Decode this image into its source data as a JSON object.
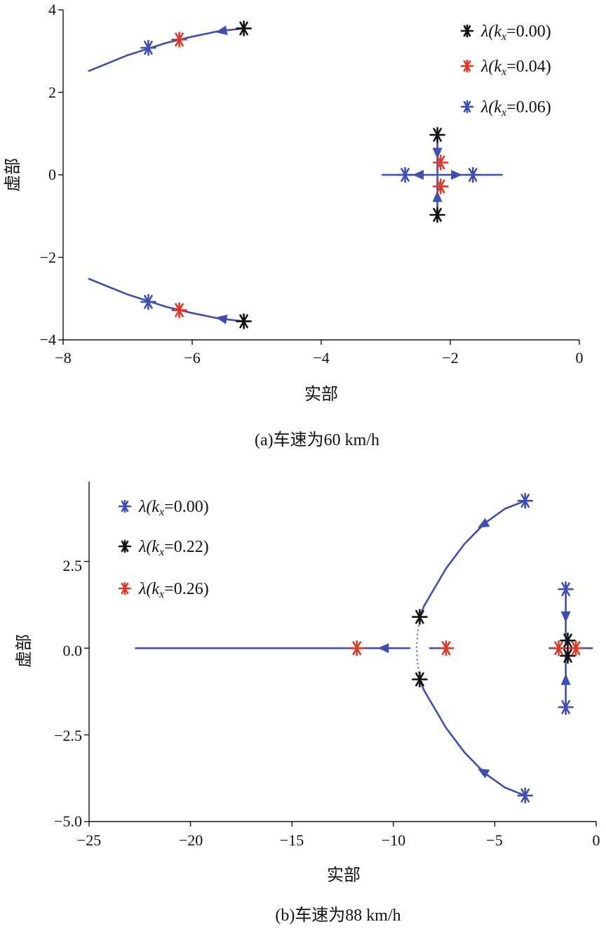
{
  "chart_data": [
    {
      "type": "scatter",
      "caption": "(a)车速为60 km/h",
      "xlabel": "实部",
      "ylabel": "虚部",
      "xlim": [
        -8,
        0
      ],
      "ylim": [
        -4,
        4
      ],
      "xticks": [
        -8,
        -6,
        -4,
        -2,
        0
      ],
      "yticks": [
        -4,
        -2,
        0,
        2,
        4
      ],
      "xtick_labels": [
        "−8",
        "−6",
        "−4",
        "−2",
        "0"
      ],
      "ytick_labels": [
        "−4",
        "−2",
        "0",
        "2",
        "4"
      ],
      "grid": false,
      "legend_position": "top-right",
      "colors": {
        "line": "#3f4fb0",
        "black": "#111111",
        "red": "#d83a2a",
        "blue": "#3f4fb0"
      },
      "series": [
        {
          "name": "λ(kx=0.00)",
          "label_pre": "λ(",
          "label_k": "k",
          "label_sub": "x",
          "label_post": "=0.00)",
          "color": "#111111",
          "points": [
            [
              -5.2,
              3.55
            ],
            [
              -5.2,
              -3.55
            ],
            [
              -2.2,
              0.97
            ],
            [
              -2.2,
              -0.97
            ]
          ]
        },
        {
          "name": "λ(kx=0.04)",
          "label_pre": "λ(",
          "label_k": "k",
          "label_sub": "x",
          "label_post": "=0.04)",
          "color": "#d83a2a",
          "points": [
            [
              -6.2,
              3.28
            ],
            [
              -6.2,
              -3.28
            ],
            [
              -2.15,
              0.3
            ],
            [
              -2.15,
              -0.28
            ]
          ]
        },
        {
          "name": "λ(kx=0.06)",
          "label_pre": "λ(",
          "label_k": "k",
          "label_sub": "x",
          "label_post": "=0.06)",
          "color": "#3f4fb0",
          "points": [
            [
              -6.68,
              3.08
            ],
            [
              -6.68,
              -3.08
            ],
            [
              -2.7,
              0.0
            ],
            [
              -1.65,
              0.0
            ]
          ]
        }
      ],
      "loci": [
        [
          [
            -5.2,
            3.55
          ],
          [
            -5.6,
            3.48
          ],
          [
            -6.0,
            3.35
          ],
          [
            -6.4,
            3.2
          ],
          [
            -7.0,
            2.9
          ],
          [
            -7.6,
            2.52
          ]
        ],
        [
          [
            -5.2,
            -3.55
          ],
          [
            -5.6,
            -3.48
          ],
          [
            -6.0,
            -3.35
          ],
          [
            -6.4,
            -3.2
          ],
          [
            -7.0,
            -2.9
          ],
          [
            -7.6,
            -2.52
          ]
        ],
        [
          [
            -3.05,
            0.0
          ],
          [
            -1.2,
            0.0
          ]
        ],
        [
          [
            -2.2,
            0.97
          ],
          [
            -2.2,
            0.04
          ]
        ],
        [
          [
            -2.2,
            -0.97
          ],
          [
            -2.2,
            -0.04
          ]
        ]
      ],
      "arrows": [
        {
          "at": [
            -5.55,
            3.48
          ],
          "dir": [
            -1,
            -0.18
          ]
        },
        {
          "at": [
            -5.55,
            -3.48
          ],
          "dir": [
            -1,
            0.18
          ]
        },
        {
          "at": [
            -2.2,
            0.52
          ],
          "dir": [
            0,
            -1
          ]
        },
        {
          "at": [
            -2.2,
            -0.52
          ],
          "dir": [
            0,
            1
          ]
        },
        {
          "at": [
            -2.5,
            0.0
          ],
          "dir": [
            -1,
            0
          ]
        },
        {
          "at": [
            -1.9,
            0.0
          ],
          "dir": [
            1,
            0
          ]
        }
      ]
    },
    {
      "type": "scatter",
      "caption": "(b)车速为88 km/h",
      "xlabel": "实部",
      "ylabel": "虚部",
      "xlim": [
        -25,
        0
      ],
      "ylim": [
        -5.0,
        4.8
      ],
      "xticks": [
        -25,
        -20,
        -15,
        -10,
        -5,
        0
      ],
      "yticks": [
        -5.0,
        -2.5,
        0.0,
        2.5
      ],
      "xtick_labels": [
        "−25",
        "−20",
        "−15",
        "−10",
        "−5",
        "0"
      ],
      "ytick_labels": [
        "−5.0",
        "−2.5",
        "0.0",
        "2.5"
      ],
      "grid": false,
      "legend_position": "top-left",
      "colors": {
        "line": "#3f4fb0",
        "black": "#111111",
        "red": "#d83a2a",
        "blue": "#3f4fb0"
      },
      "series": [
        {
          "name": "λ(kx=0.00)",
          "label_pre": "λ(",
          "label_k": "k",
          "label_sub": "x",
          "label_post": "=0.00)",
          "color": "#3f4fb0",
          "points": [
            [
              -3.5,
              4.25
            ],
            [
              -3.5,
              -4.25
            ],
            [
              -1.5,
              1.7
            ],
            [
              -1.5,
              -1.7
            ]
          ]
        },
        {
          "name": "λ(kx=0.22)",
          "label_pre": "λ(",
          "label_k": "k",
          "label_sub": "x",
          "label_post": "=0.22)",
          "color": "#111111",
          "points": [
            [
              -8.7,
              0.9
            ],
            [
              -8.7,
              -0.9
            ],
            [
              -1.4,
              0.22
            ],
            [
              -1.4,
              -0.22
            ]
          ]
        },
        {
          "name": "λ(kx=0.26)",
          "label_pre": "λ(",
          "label_k": "k",
          "label_sub": "x",
          "label_post": "=0.26)",
          "color": "#d83a2a",
          "points": [
            [
              -11.8,
              0.0
            ],
            [
              -7.4,
              0.0
            ],
            [
              -1.85,
              0.0
            ],
            [
              -1.0,
              0.0
            ]
          ]
        }
      ],
      "loci": [
        [
          [
            -3.5,
            4.25
          ],
          [
            -4.5,
            4.02
          ],
          [
            -5.5,
            3.6
          ],
          [
            -6.5,
            3.0
          ],
          [
            -7.4,
            2.3
          ],
          [
            -8.1,
            1.6
          ],
          [
            -8.5,
            1.2
          ],
          [
            -8.7,
            0.9
          ]
        ],
        [
          [
            -3.5,
            -4.25
          ],
          [
            -4.5,
            -4.02
          ],
          [
            -5.5,
            -3.6
          ],
          [
            -6.5,
            -3.0
          ],
          [
            -7.4,
            -2.3
          ],
          [
            -8.1,
            -1.6
          ],
          [
            -8.5,
            -1.2
          ],
          [
            -8.7,
            -0.9
          ]
        ],
        [
          [
            -22.7,
            0.0
          ],
          [
            -9.2,
            0.0
          ]
        ],
        [
          [
            -8.2,
            0.0
          ],
          [
            -7.4,
            0.0
          ]
        ],
        [
          [
            -2.3,
            0.0
          ],
          [
            -0.2,
            0.0
          ]
        ],
        [
          [
            -1.5,
            1.7
          ],
          [
            -1.5,
            0.1
          ]
        ],
        [
          [
            -1.5,
            -1.7
          ],
          [
            -1.5,
            -0.1
          ]
        ]
      ],
      "dotted": [
        [
          [
            -8.7,
            0.9
          ],
          [
            -8.8,
            0.45
          ],
          [
            -8.85,
            0.0
          ],
          [
            -8.8,
            -0.45
          ],
          [
            -8.7,
            -0.9
          ]
        ]
      ],
      "arrows": [
        {
          "at": [
            -5.6,
            3.55
          ],
          "dir": [
            -1,
            -0.55
          ]
        },
        {
          "at": [
            -5.6,
            -3.55
          ],
          "dir": [
            -1,
            0.55
          ]
        },
        {
          "at": [
            -10.5,
            0.0
          ],
          "dir": [
            -1,
            0
          ]
        },
        {
          "at": [
            -1.5,
            0.9
          ],
          "dir": [
            0,
            -1
          ]
        },
        {
          "at": [
            -1.5,
            -0.9
          ],
          "dir": [
            0,
            1
          ]
        }
      ]
    }
  ]
}
